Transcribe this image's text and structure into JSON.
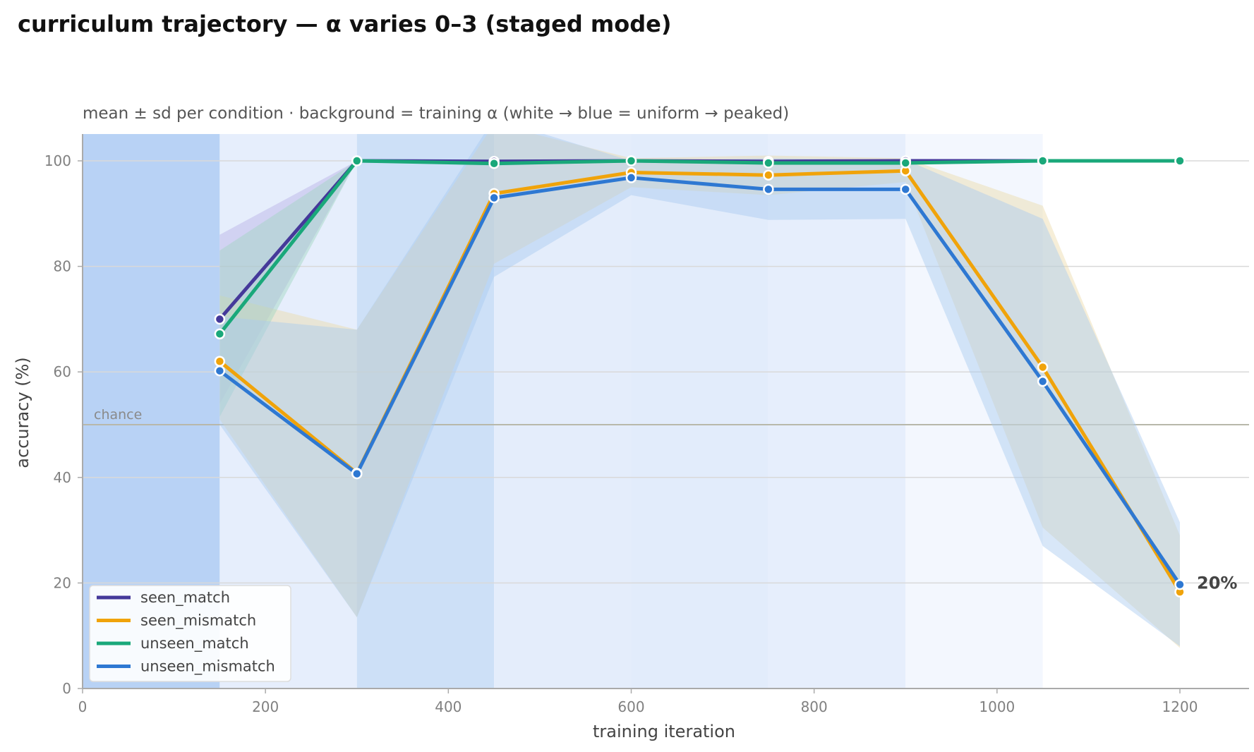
{
  "chart_data": {
    "type": "line",
    "title": "curriculum trajectory — α varies 0–3 (staged mode)",
    "subtitle": "mean ± sd per condition · background = training α (white → blue = uniform → peaked)",
    "xlabel": "training iteration",
    "ylabel": "accuracy (%)",
    "xlim": [
      0,
      1270
    ],
    "ylim": [
      0,
      105
    ],
    "xticks": [
      0,
      200,
      400,
      600,
      800,
      1000,
      1200
    ],
    "yticks": [
      0,
      20,
      40,
      60,
      80,
      100
    ],
    "grid": "horizontal",
    "legend_position": "lower-left",
    "reference_line": {
      "y": 50,
      "label": "chance",
      "color": "#b8b8aa"
    },
    "end_annotation": {
      "text": "20%",
      "x": 1200,
      "y": 20
    },
    "background_bands": [
      {
        "x0": 0,
        "x1": 150,
        "color": "#b8d2f5"
      },
      {
        "x0": 150,
        "x1": 300,
        "color": "#e6eefc"
      },
      {
        "x0": 300,
        "x1": 450,
        "color": "#cde0f7"
      },
      {
        "x0": 450,
        "x1": 600,
        "color": "#e4edfb"
      },
      {
        "x0": 600,
        "x1": 750,
        "color": "#e2ecfb"
      },
      {
        "x0": 750,
        "x1": 900,
        "color": "#e6eefc"
      },
      {
        "x0": 900,
        "x1": 1050,
        "color": "#f3f7fe"
      }
    ],
    "series": [
      {
        "name": "seen_match",
        "color": "#45399a",
        "band_color": "#b8b0e6",
        "x": [
          150,
          300,
          450,
          600,
          750,
          900,
          1050,
          1200
        ],
        "values": [
          70.0,
          100.0,
          99.9,
          100.0,
          99.9,
          100.0,
          100.0,
          100.0
        ],
        "sd_low": [
          54.0,
          100.0,
          99.6,
          100.0,
          99.6,
          100.0,
          100.0,
          100.0
        ],
        "sd_high": [
          86.0,
          100.0,
          100.0,
          100.0,
          100.0,
          100.0,
          100.0,
          100.0
        ]
      },
      {
        "name": "seen_mismatch",
        "color": "#f0a30a",
        "band_color": "#ecd9a8",
        "x": [
          150,
          300,
          450,
          600,
          750,
          900,
          1050,
          1200
        ],
        "values": [
          62.0,
          40.8,
          93.8,
          97.8,
          97.3,
          98.1,
          60.9,
          18.3
        ],
        "sd_low": [
          51.0,
          13.5,
          80.5,
          95.0,
          93.5,
          96.0,
          30.5,
          7.7
        ],
        "sd_high": [
          74.5,
          68.0,
          107.0,
          100.5,
          101.0,
          100.5,
          91.5,
          29.0
        ]
      },
      {
        "name": "unseen_match",
        "color": "#1aa87a",
        "band_color": "#9fd4c2",
        "x": [
          150,
          300,
          450,
          600,
          750,
          900,
          1050,
          1200
        ],
        "values": [
          67.2,
          100.0,
          99.5,
          100.0,
          99.6,
          99.6,
          100.0,
          100.0
        ],
        "sd_low": [
          51.5,
          100.0,
          99.0,
          100.0,
          99.2,
          99.2,
          100.0,
          100.0
        ],
        "sd_high": [
          83.0,
          100.0,
          100.0,
          100.0,
          100.0,
          100.0,
          100.0,
          100.0
        ]
      },
      {
        "name": "unseen_mismatch",
        "color": "#2e78d2",
        "band_color": "#a9c9ef",
        "x": [
          150,
          300,
          450,
          600,
          750,
          900,
          1050,
          1200
        ],
        "values": [
          60.2,
          40.7,
          93.0,
          96.8,
          94.6,
          94.6,
          58.2,
          19.7
        ],
        "sd_low": [
          50.0,
          13.5,
          78.0,
          93.5,
          88.8,
          89.0,
          27.0,
          8.0
        ],
        "sd_high": [
          70.5,
          68.0,
          108.0,
          100.0,
          100.5,
          100.2,
          89.0,
          31.5
        ]
      }
    ]
  }
}
